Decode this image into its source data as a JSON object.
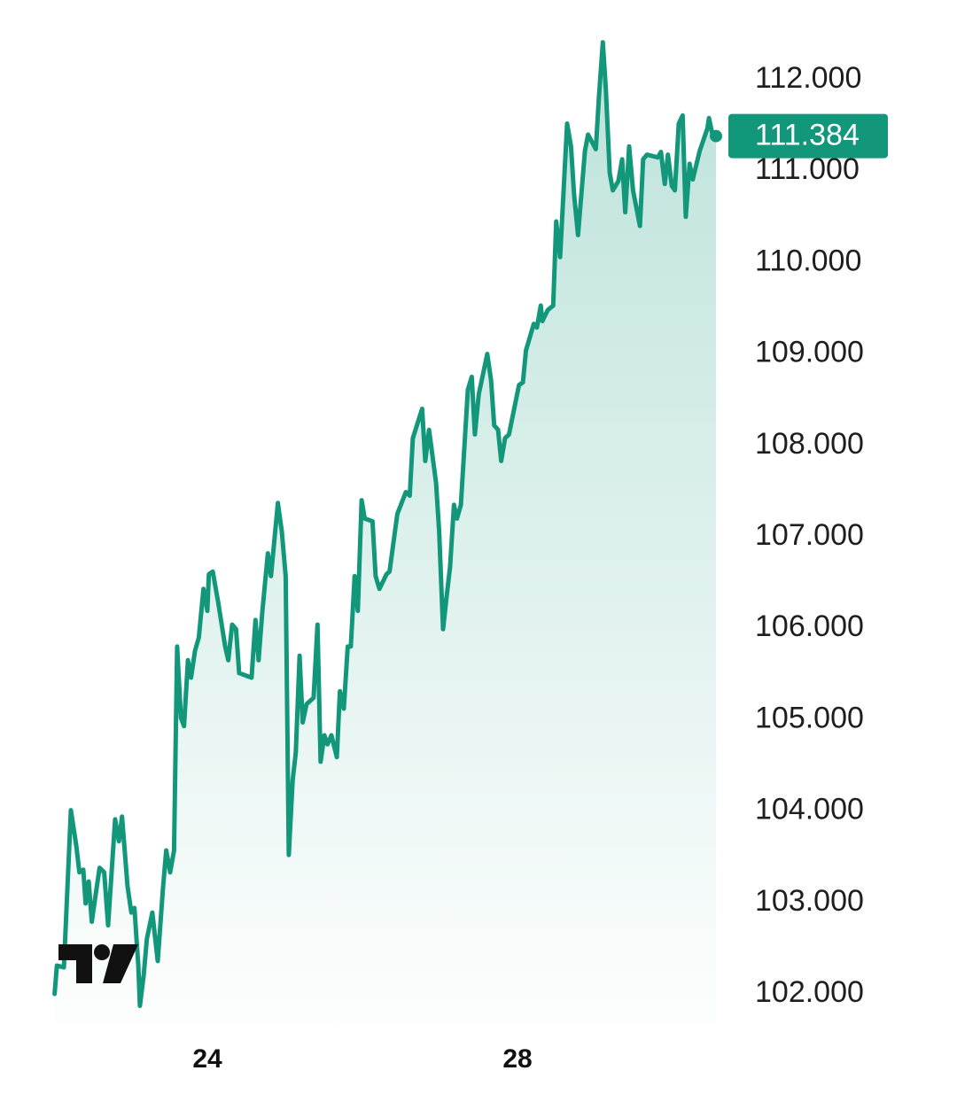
{
  "chart_data": {
    "type": "line",
    "x": [
      22.03,
      22.06,
      22.15,
      22.24,
      22.31,
      22.35,
      22.4,
      22.43,
      22.47,
      22.51,
      22.56,
      22.61,
      22.67,
      22.72,
      22.81,
      22.86,
      22.9,
      22.97,
      23.02,
      23.06,
      23.11,
      23.13,
      23.18,
      23.22,
      23.29,
      23.36,
      23.43,
      23.47,
      23.52,
      23.57,
      23.61,
      23.66,
      23.7,
      23.75,
      23.79,
      23.84,
      23.89,
      23.95,
      24.0,
      24.02,
      24.07,
      24.14,
      24.23,
      24.27,
      24.32,
      24.37,
      24.41,
      24.57,
      24.62,
      24.66,
      24.71,
      24.78,
      24.82,
      24.91,
      24.96,
      25.01,
      25.05,
      25.1,
      25.14,
      25.19,
      25.23,
      25.28,
      25.37,
      25.42,
      25.46,
      25.51,
      25.55,
      25.6,
      25.67,
      25.71,
      25.76,
      25.81,
      25.85,
      25.9,
      25.94,
      25.99,
      26.03,
      26.13,
      26.17,
      26.22,
      26.31,
      26.35,
      26.45,
      26.56,
      26.61,
      26.65,
      26.77,
      26.81,
      26.86,
      26.95,
      26.99,
      27.04,
      27.09,
      27.13,
      27.18,
      27.22,
      27.27,
      27.36,
      27.41,
      27.45,
      27.5,
      27.61,
      27.66,
      27.7,
      27.75,
      27.79,
      27.84,
      27.89,
      28.02,
      28.07,
      28.11,
      28.21,
      28.25,
      28.3,
      28.32,
      28.39,
      28.46,
      28.5,
      28.55,
      28.64,
      28.69,
      28.73,
      28.78,
      28.87,
      28.91,
      29.01,
      29.05,
      29.1,
      29.14,
      29.19,
      29.23,
      29.3,
      29.35,
      29.39,
      29.44,
      29.49,
      29.58,
      29.62,
      29.67,
      29.81,
      29.85,
      29.9,
      29.94,
      29.99,
      30.03,
      30.08,
      30.13,
      30.17,
      30.22,
      30.26,
      30.35,
      30.45,
      30.47,
      30.51,
      30.56
    ],
    "values": [
      102.0,
      102.31,
      102.29,
      104.01,
      103.62,
      103.33,
      103.36,
      102.99,
      103.23,
      102.79,
      103.09,
      103.38,
      103.33,
      102.75,
      103.91,
      103.67,
      103.94,
      103.18,
      102.89,
      102.94,
      102.31,
      101.87,
      102.21,
      102.6,
      102.89,
      102.36,
      103.18,
      103.57,
      103.33,
      103.57,
      105.8,
      105.02,
      104.93,
      105.65,
      105.46,
      105.75,
      105.9,
      106.43,
      106.19,
      106.59,
      106.62,
      106.28,
      105.8,
      105.65,
      106.04,
      105.99,
      105.51,
      105.46,
      106.09,
      105.65,
      106.19,
      106.82,
      106.57,
      107.37,
      107.06,
      106.57,
      103.52,
      104.34,
      104.64,
      105.7,
      104.97,
      105.17,
      105.24,
      106.04,
      104.54,
      104.83,
      104.73,
      104.83,
      104.59,
      105.31,
      105.12,
      105.8,
      105.8,
      106.57,
      106.19,
      107.4,
      107.2,
      107.17,
      106.57,
      106.43,
      106.59,
      106.62,
      107.25,
      107.49,
      107.45,
      108.08,
      108.4,
      107.83,
      108.17,
      107.59,
      107.06,
      105.99,
      106.38,
      106.67,
      107.35,
      107.2,
      107.35,
      108.61,
      108.75,
      108.12,
      108.56,
      109.0,
      108.71,
      108.22,
      108.17,
      107.83,
      108.08,
      108.12,
      108.66,
      108.69,
      109.04,
      109.33,
      109.29,
      109.53,
      109.36,
      109.48,
      109.53,
      110.45,
      110.06,
      111.52,
      111.27,
      110.74,
      110.3,
      111.22,
      111.4,
      111.24,
      111.81,
      112.41,
      111.9,
      110.98,
      110.79,
      110.89,
      111.13,
      110.55,
      111.27,
      110.79,
      110.4,
      111.13,
      111.18,
      111.15,
      111.21,
      110.86,
      111.18,
      110.84,
      110.79,
      111.52,
      111.61,
      110.5,
      111.08,
      110.91,
      111.22,
      111.47,
      111.58,
      111.42,
      111.384
    ],
    "color": "#12977b",
    "current_price": {
      "value": 111.384,
      "label": "111.384"
    },
    "xlim": [
      22,
      30.6
    ],
    "xticks": [
      24,
      28
    ],
    "ylim": [
      101.7,
      112.5
    ],
    "yticks": [
      {
        "value": 102,
        "label": "102.000"
      },
      {
        "value": 103,
        "label": "103.000"
      },
      {
        "value": 104,
        "label": "104.000"
      },
      {
        "value": 105,
        "label": "105.000"
      },
      {
        "value": 106,
        "label": "106.000"
      },
      {
        "value": 107,
        "label": "107.000"
      },
      {
        "value": 108,
        "label": "108.000"
      },
      {
        "value": 109,
        "label": "109.000"
      },
      {
        "value": 110,
        "label": "110.000"
      },
      {
        "value": 111,
        "label": "111.000"
      },
      {
        "value": 112,
        "label": "112.000"
      }
    ],
    "grid": false
  }
}
